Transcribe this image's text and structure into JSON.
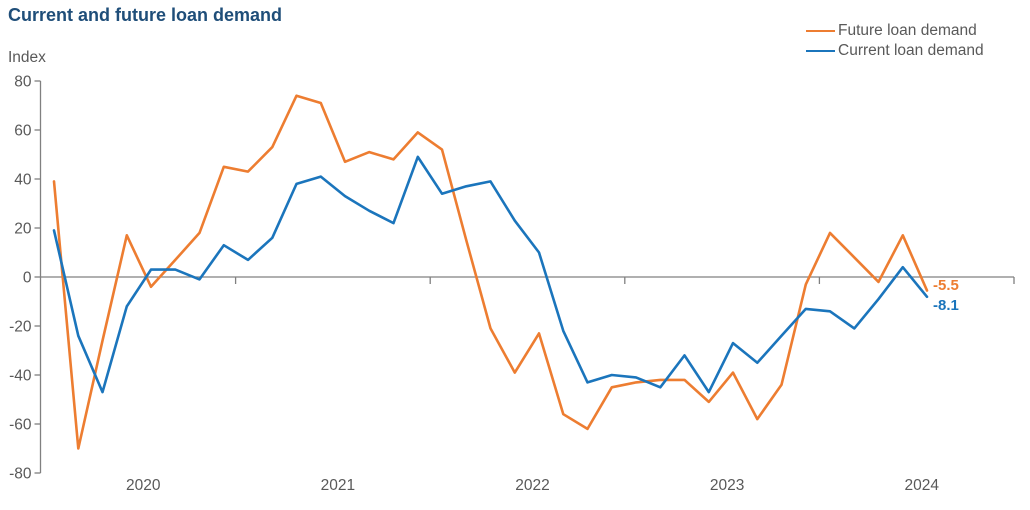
{
  "title": "Current and future loan demand",
  "y_axis_label": "Index",
  "legend": [
    {
      "label": "Future loan demand",
      "color": "#ED7D31"
    },
    {
      "label": "Current loan demand",
      "color": "#1B75BC"
    }
  ],
  "end_labels": {
    "future": "-5.5",
    "current": "-8.1"
  },
  "colors": {
    "title": "#1f4e79",
    "axis": "#808080",
    "tick_text": "#595959",
    "future_line": "#ED7D31",
    "current_line": "#1B75BC"
  },
  "chart_data": {
    "type": "line",
    "title": "Current and future loan demand",
    "ylabel": "Index",
    "ylim": [
      -80,
      80
    ],
    "y_ticks": [
      80,
      60,
      40,
      20,
      0,
      -20,
      -40,
      -60,
      -80
    ],
    "x_tick_labels": [
      "2020",
      "2021",
      "2022",
      "2023",
      "2024"
    ],
    "x_note": "37 survey observations at equal ~6-week intervals, early 2020 through 2024; year ticks mark January boundaries on the zero line",
    "grid": "zero line only",
    "legend_position": "top-right",
    "series": [
      {
        "name": "Future loan demand",
        "color": "#ED7D31",
        "values": [
          39,
          -70,
          -26,
          17,
          -4,
          7,
          18,
          45,
          43,
          53,
          74,
          71,
          47,
          51,
          48,
          59,
          52,
          15,
          -21,
          -39,
          -23,
          -56,
          -62,
          -45,
          -43,
          -42,
          -42,
          -51,
          -39,
          -58,
          -44,
          -3,
          18,
          8,
          -2,
          17,
          -5.5
        ]
      },
      {
        "name": "Current loan demand",
        "color": "#1B75BC",
        "values": [
          19,
          -24,
          -47,
          -12,
          3,
          3,
          -1,
          13,
          7,
          16,
          38,
          41,
          33,
          27,
          22,
          49,
          34,
          37,
          39,
          23,
          10,
          -22,
          -43,
          -40,
          -41,
          -45,
          -32,
          -47,
          -27,
          -35,
          -24,
          -13,
          -14,
          -21,
          -9,
          4,
          -8.1
        ]
      }
    ],
    "last_values": {
      "Future loan demand": -5.5,
      "Current loan demand": -8.1
    }
  }
}
